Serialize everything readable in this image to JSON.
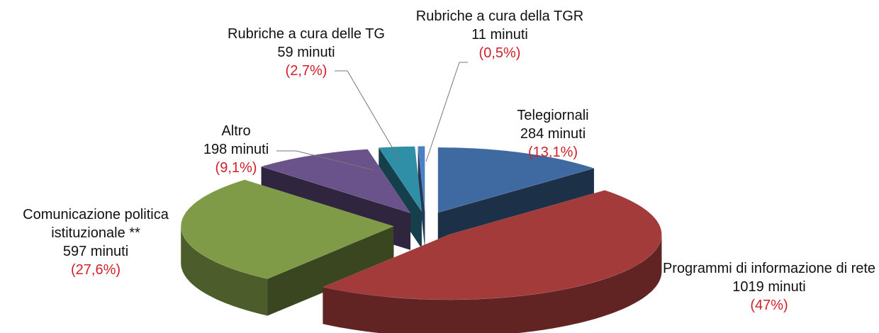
{
  "chart_data": {
    "type": "pie3d",
    "categories": [
      "Telegiornali",
      "Programmi di informazione di rete",
      "Comunicazione politica istituzionale **",
      "Altro",
      "Rubriche a cura delle TG",
      "Rubriche a cura della TGR"
    ],
    "values": [
      284,
      1019,
      597,
      198,
      59,
      11
    ],
    "value_labels": [
      "284 minuti",
      "1019 minuti",
      "597 minuti",
      "198 minuti",
      "59 minuti",
      "11 minuti"
    ],
    "percentages": [
      13.1,
      47,
      27.6,
      9.1,
      2.7,
      0.5
    ],
    "percentage_labels": [
      "(13,1%)",
      "(47%)",
      "(27,6%)",
      "(9,1%)",
      "(2,7%)",
      "(0,5%)"
    ],
    "colors": [
      "#3f6aa1",
      "#a33b3b",
      "#7f9b47",
      "#6a538a",
      "#2f8fa7",
      "#4a80c6"
    ]
  }
}
